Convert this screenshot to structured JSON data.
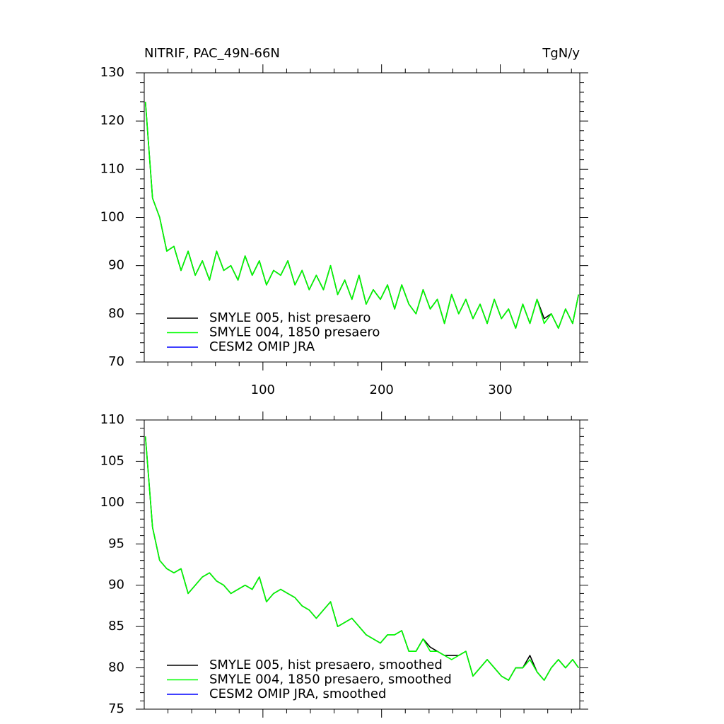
{
  "chart_data": [
    {
      "type": "line",
      "title": "NITRIF, PAC_49N-66N",
      "units": "TgN/y",
      "x": [
        1,
        7,
        13,
        19,
        25,
        31,
        37,
        43,
        49,
        55,
        61,
        67,
        73,
        79,
        85,
        91,
        97,
        103,
        109,
        115,
        121,
        127,
        133,
        139,
        145,
        151,
        157,
        163,
        169,
        175,
        181,
        187,
        193,
        199,
        205,
        211,
        217,
        223,
        229,
        235,
        241,
        247,
        253,
        259,
        265,
        271,
        277,
        283,
        289,
        295,
        301,
        307,
        313,
        319,
        325,
        331,
        337,
        343,
        349,
        355,
        361,
        366
      ],
      "series": [
        {
          "name": "SMYLE 005, hist presaero",
          "color": "#000000",
          "values": [
            124,
            104,
            100,
            93,
            94,
            89,
            93,
            88,
            91,
            87,
            93,
            89,
            90,
            87,
            92,
            88,
            91,
            86,
            89,
            88,
            91,
            86,
            89,
            85,
            88,
            85,
            90,
            84,
            87,
            83,
            88,
            82,
            85,
            83,
            86,
            81,
            86,
            82,
            80,
            85,
            81,
            83,
            78,
            84,
            80,
            83,
            79,
            82,
            78,
            83,
            79,
            81,
            77,
            82,
            78,
            83,
            79,
            80,
            77,
            81,
            78,
            84
          ]
        },
        {
          "name": "SMYLE 004, 1850 presaero",
          "color": "#00ff00",
          "values": [
            124,
            104,
            100,
            93,
            94,
            89,
            93,
            88,
            91,
            87,
            93,
            89,
            90,
            87,
            92,
            88,
            91,
            86,
            89,
            88,
            91,
            86,
            89,
            85,
            88,
            85,
            90,
            84,
            87,
            83,
            88,
            82,
            85,
            83,
            86,
            81,
            86,
            82,
            80,
            85,
            81,
            83,
            78,
            84,
            80,
            83,
            79,
            82,
            78,
            83,
            79,
            81,
            77,
            82,
            78,
            83,
            78,
            80,
            77,
            81,
            78,
            84
          ]
        },
        {
          "name": "CESM2 OMIP JRA",
          "color": "#0000ff",
          "values": [
            null,
            null,
            null,
            null,
            null,
            null,
            null,
            null,
            null,
            null,
            null,
            null,
            null,
            null,
            null,
            null,
            null,
            null,
            null,
            null,
            null,
            null,
            null,
            null,
            null,
            null,
            null,
            null,
            null,
            null,
            null,
            null,
            null,
            null,
            null,
            null,
            null,
            null,
            null,
            null,
            null,
            null,
            null,
            null,
            null,
            null,
            null,
            null,
            null,
            null,
            null,
            null,
            null,
            null,
            null,
            null,
            null,
            null,
            null,
            null,
            null,
            null
          ]
        }
      ],
      "xlim": [
        0,
        367
      ],
      "xticks": [
        100,
        200,
        300
      ],
      "show_xtick_labels": true,
      "ylim": [
        70,
        130
      ],
      "yticks": [
        70,
        80,
        90,
        100,
        110,
        120,
        130
      ],
      "legend": "lower left"
    },
    {
      "type": "line",
      "x": [
        1,
        7,
        13,
        19,
        25,
        31,
        37,
        43,
        49,
        55,
        61,
        67,
        73,
        79,
        85,
        91,
        97,
        103,
        109,
        115,
        121,
        127,
        133,
        139,
        145,
        151,
        157,
        163,
        169,
        175,
        181,
        187,
        193,
        199,
        205,
        211,
        217,
        223,
        229,
        235,
        241,
        247,
        253,
        259,
        265,
        271,
        277,
        283,
        289,
        295,
        301,
        307,
        313,
        319,
        325,
        331,
        337,
        343,
        349,
        355,
        361,
        366
      ],
      "series": [
        {
          "name": "SMYLE 005, hist presaero, smoothed",
          "color": "#000000",
          "values": [
            108,
            97,
            93,
            92,
            91.5,
            92,
            89,
            90,
            91,
            91.5,
            90.5,
            90,
            89,
            89.5,
            90,
            89.5,
            91,
            88,
            89,
            89.5,
            89,
            88.5,
            87.5,
            87,
            86,
            87,
            88,
            85,
            85.5,
            86,
            85,
            84,
            83.5,
            83,
            84,
            84,
            84.5,
            82,
            82,
            83.5,
            82.5,
            82,
            81.5,
            81.5,
            81.5,
            82,
            79,
            80,
            81,
            80,
            79,
            78.5,
            80,
            80,
            81.5,
            79.5,
            78.5,
            80,
            81,
            80,
            81,
            80
          ]
        },
        {
          "name": "SMYLE 004, 1850 presaero, smoothed",
          "color": "#00ff00",
          "values": [
            108,
            97,
            93,
            92,
            91.5,
            92,
            89,
            90,
            91,
            91.5,
            90.5,
            90,
            89,
            89.5,
            90,
            89.5,
            91,
            88,
            89,
            89.5,
            89,
            88.5,
            87.5,
            87,
            86,
            87,
            88,
            85,
            85.5,
            86,
            85,
            84,
            83.5,
            83,
            84,
            84,
            84.5,
            82,
            82,
            83.5,
            82,
            82,
            81.5,
            81,
            81.5,
            82,
            79,
            80,
            81,
            80,
            79,
            78.5,
            80,
            80,
            81,
            79.5,
            78.5,
            80,
            81,
            80,
            81,
            80
          ]
        },
        {
          "name": "CESM2 OMIP JRA, smoothed",
          "color": "#0000ff",
          "values": [
            null,
            null,
            null,
            null,
            null,
            null,
            null,
            null,
            null,
            null,
            null,
            null,
            null,
            null,
            null,
            null,
            null,
            null,
            null,
            null,
            null,
            null,
            null,
            null,
            null,
            null,
            null,
            null,
            null,
            null,
            null,
            null,
            null,
            null,
            null,
            null,
            null,
            null,
            null,
            null,
            null,
            null,
            null,
            null,
            null,
            null,
            null,
            null,
            null,
            null,
            null,
            null,
            null,
            null,
            null,
            null,
            null,
            null,
            null,
            null,
            null,
            null
          ]
        }
      ],
      "xlim": [
        0,
        367
      ],
      "xticks": [
        100,
        200,
        300
      ],
      "show_xtick_labels": false,
      "ylim": [
        75,
        110
      ],
      "yticks": [
        75,
        80,
        85,
        90,
        95,
        100,
        105,
        110
      ],
      "legend": "lower left"
    }
  ]
}
